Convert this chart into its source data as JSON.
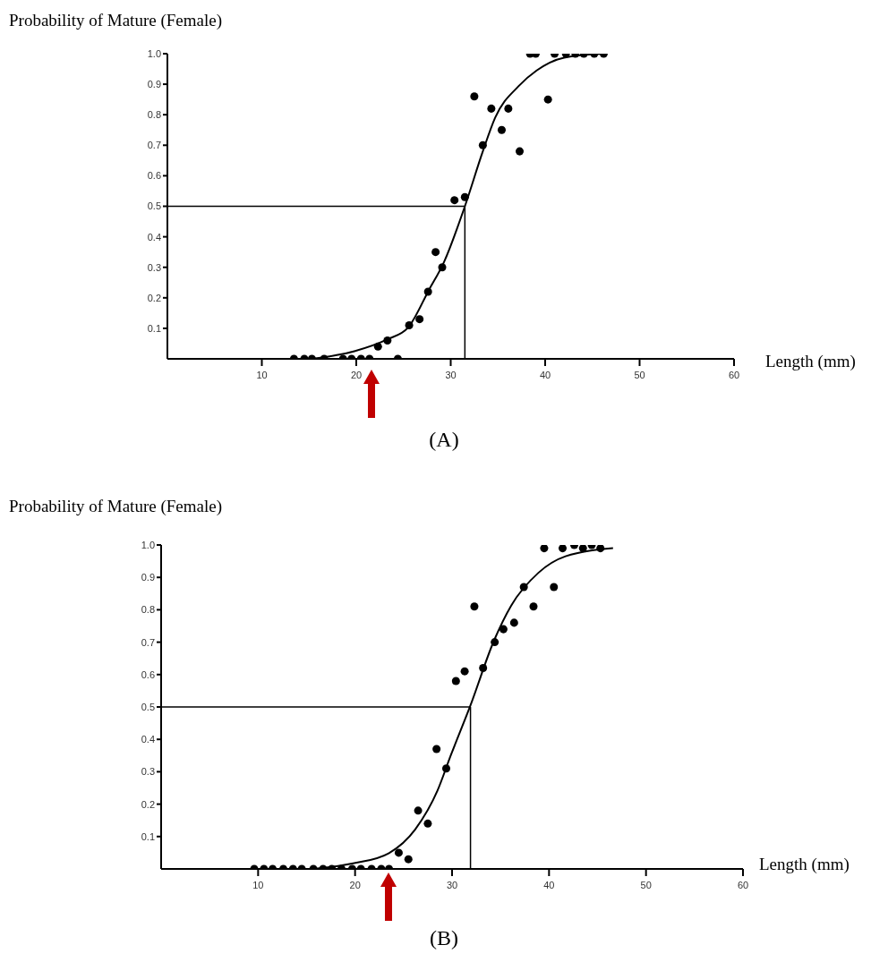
{
  "chart_data": [
    {
      "type": "scatter",
      "title": "(A)",
      "xlabel": "Length (mm)",
      "ylabel": "Probability of Mature (Female)",
      "xlim": [
        0,
        60
      ],
      "xticks": [
        10,
        20,
        30,
        40,
        50,
        60
      ],
      "ylim": [
        0,
        1
      ],
      "yticks": [
        {
          "value": 0.1,
          "label": "0.1"
        },
        {
          "value": 0.2,
          "label": "0.2"
        },
        {
          "value": 0.3,
          "label": "0.3"
        },
        {
          "value": 0.4,
          "label": "0.4"
        },
        {
          "value": 0.5,
          "label": "0.5"
        },
        {
          "value": 0.6,
          "label": "0.6"
        },
        {
          "value": 0.7,
          "label": "0.7"
        },
        {
          "value": 0.8,
          "label": "0.8"
        },
        {
          "value": 0.9,
          "label": "0.9"
        },
        {
          "value": 1,
          "label": "1.0"
        }
      ],
      "grid": false,
      "series": [
        {
          "marker": "circle",
          "color": "#000000",
          "x": [
            13.4,
            14.5,
            15.3,
            16.6,
            18.6,
            19.5,
            20.5,
            21.4,
            24.4,
            22.3,
            23.3,
            25.6,
            26.7,
            27.6,
            28.4,
            29.1,
            30.4,
            31.5,
            32.5,
            33.4,
            34.3,
            35.4,
            36.1,
            37.3,
            38.4,
            39.0,
            40.3,
            41.0,
            42.2,
            43.2,
            44.1,
            45.2,
            46.2
          ],
          "values": [
            0,
            0,
            0,
            0,
            0,
            0,
            0,
            0,
            0,
            0.04,
            0.06,
            0.11,
            0.13,
            0.22,
            0.35,
            0.3,
            0.52,
            0.53,
            0.86,
            0.7,
            0.82,
            0.75,
            0.82,
            0.68,
            1,
            1,
            0.85,
            1,
            1,
            1,
            1,
            1,
            1
          ]
        },
        {
          "type": "line",
          "marker": "none",
          "color": "#000000",
          "line_style": "solid",
          "x": [
            15.3,
            19.8,
            23.3,
            25.5,
            27.7,
            29.3,
            31.5,
            33.4,
            34.7,
            37.2,
            39.1,
            42.0,
            46.1
          ],
          "values": [
            0,
            0.025,
            0.064,
            0.103,
            0.226,
            0.318,
            0.5,
            0.68,
            0.79,
            0.894,
            0.945,
            0.987,
            1
          ]
        }
      ],
      "ref_lines": [
        {
          "axis": "y",
          "value": 0.5,
          "color": "#000000"
        },
        {
          "axis": "x",
          "value": 31.5,
          "color": "#000000"
        }
      ]
    },
    {
      "type": "scatter",
      "title": "(B)",
      "xlabel": "Length (mm)",
      "ylabel": "Probability of Mature (Female)",
      "xlim": [
        0,
        60
      ],
      "xticks": [
        10,
        20,
        30,
        40,
        50,
        60
      ],
      "ylim": [
        0,
        1
      ],
      "yticks": [
        {
          "value": 0.1,
          "label": "0.1"
        },
        {
          "value": 0.2,
          "label": "0.2"
        },
        {
          "value": 0.3,
          "label": "0.3"
        },
        {
          "value": 0.4,
          "label": "0.4"
        },
        {
          "value": 0.5,
          "label": "0.5"
        },
        {
          "value": 0.6,
          "label": "0.6"
        },
        {
          "value": 0.7,
          "label": "0.7"
        },
        {
          "value": 0.8,
          "label": "0.8"
        },
        {
          "value": 0.9,
          "label": "0.9"
        },
        {
          "value": 1,
          "label": "1.0"
        }
      ],
      "grid": false,
      "series": [
        {
          "marker": "circle",
          "color": "#000000",
          "x": [
            9.6,
            10.6,
            11.5,
            12.6,
            13.6,
            14.5,
            15.7,
            16.7,
            17.6,
            18.6,
            19.7,
            20.6,
            21.7,
            22.7,
            23.5,
            24.5,
            25.5,
            26.5,
            27.5,
            28.4,
            29.4,
            30.4,
            31.3,
            32.3,
            33.2,
            34.4,
            35.3,
            36.4,
            37.4,
            38.4,
            39.5,
            40.5,
            41.4,
            42.6,
            43.5,
            44.4,
            45.3
          ],
          "values": [
            0,
            0,
            0,
            0,
            0,
            0,
            0,
            0,
            0,
            0,
            0,
            0,
            0,
            0,
            0,
            0.05,
            0.03,
            0.18,
            0.14,
            0.37,
            0.31,
            0.58,
            0.61,
            0.81,
            0.62,
            0.7,
            0.74,
            0.76,
            0.87,
            0.81,
            0.99,
            0.87,
            0.99,
            1,
            0.99,
            1,
            0.99
          ]
        },
        {
          "type": "line",
          "marker": "none",
          "color": "#000000",
          "line_style": "solid",
          "x": [
            15.7,
            19.8,
            23.5,
            26.2,
            28.5,
            29.9,
            31.9,
            34.3,
            36.1,
            38.9,
            41.7,
            46.6
          ],
          "values": [
            0,
            0.017,
            0.049,
            0.122,
            0.242,
            0.353,
            0.505,
            0.703,
            0.813,
            0.914,
            0.965,
            0.99
          ]
        }
      ],
      "ref_lines": [
        {
          "axis": "y",
          "value": 0.5,
          "color": "#000000"
        },
        {
          "axis": "x",
          "value": 31.9,
          "color": "#000000"
        }
      ]
    }
  ]
}
